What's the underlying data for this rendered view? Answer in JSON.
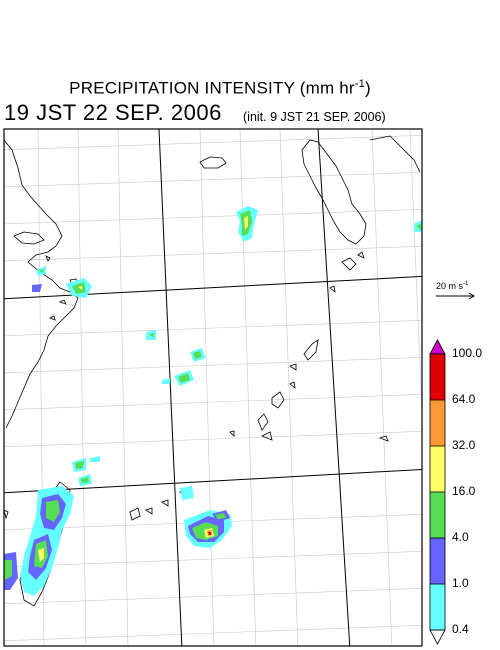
{
  "title": {
    "main": "PRECIPITATION INTENSITY (mm hr",
    "exp": "-1",
    "close": ")",
    "datetime": "19 JST 22 SEP. 2006",
    "init": "(init. 9 JST 21 SEP. 2006)"
  },
  "wind": {
    "label": "20 m s",
    "exp": "-1"
  },
  "legend": {
    "levels": [
      "100.0",
      "64.0",
      "32.0",
      "16.0",
      "4.0",
      "1.0",
      "0.4"
    ],
    "colors": [
      "#cc00cc",
      "#e00000",
      "#ff9933",
      "#ffff66",
      "#55dd55",
      "#6666ff",
      "#66ffff",
      "#ffffff"
    ]
  }
}
